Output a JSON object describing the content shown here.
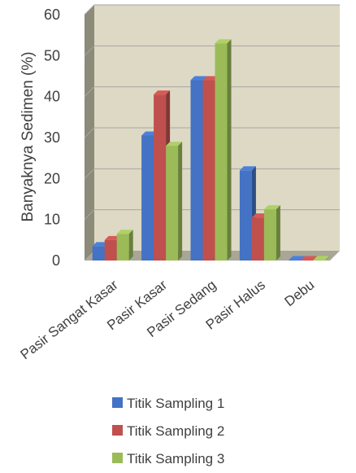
{
  "chart_data": {
    "type": "bar",
    "ylabel": "Banyaknya Sedimen (%)",
    "xlabel": "",
    "ylim": [
      0,
      60
    ],
    "yticks": [
      0,
      10,
      20,
      30,
      40,
      50,
      60
    ],
    "categories": [
      "Pasir Sangat Kasar",
      "Pasir Kasar",
      "Pasir Sedang",
      "Pasir Halus",
      "Debu"
    ],
    "series": [
      {
        "name": "Titik Sampling 1",
        "color": "#4472C4",
        "values": [
          3.5,
          30.5,
          44,
          22,
          0.1
        ]
      },
      {
        "name": "Titik Sampling 2",
        "color": "#C0504D",
        "values": [
          5,
          40.5,
          44,
          10.5,
          0.1
        ]
      },
      {
        "name": "Titik Sampling 3",
        "color": "#9BBB59",
        "values": [
          6.5,
          28,
          53,
          12.5,
          0.1
        ]
      }
    ],
    "legend_position": "bottom",
    "grid": true,
    "style": "3d-clustered-column"
  }
}
